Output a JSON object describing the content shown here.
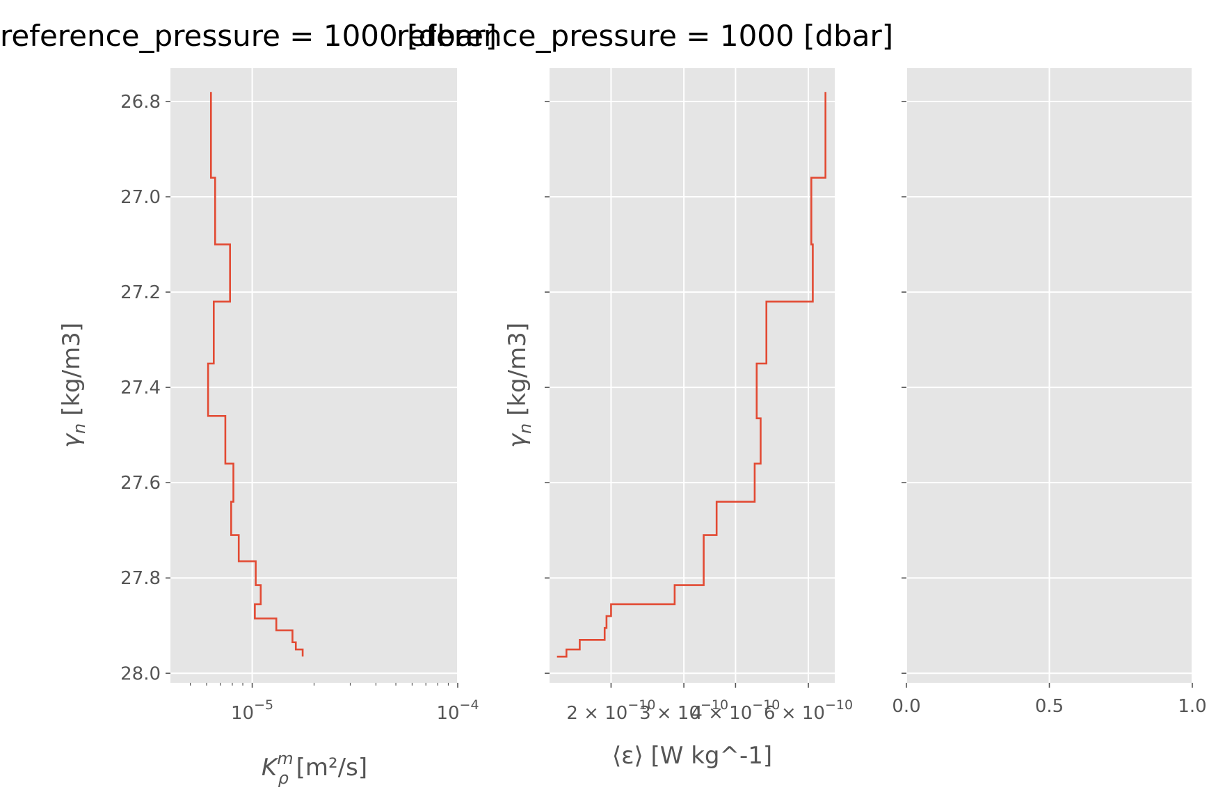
{
  "chart_data": [
    {
      "type": "line",
      "panel": "left",
      "title": "reference_pressure = 1000 [dbar]",
      "xlabel_main": "K",
      "xlabel_sup": "m",
      "xlabel_sub": "ρ",
      "xlabel_unit": " [m²/s]",
      "ylabel_main": "γ",
      "ylabel_sub": "n",
      "ylabel_unit": " [kg/m3]",
      "xscale": "log",
      "xlim": [
        4e-06,
        0.0001
      ],
      "ylim": [
        28.02,
        26.73
      ],
      "x_ticks": [
        {
          "value": 1e-05,
          "base": "10",
          "exp": "−5"
        },
        {
          "value": 0.0001,
          "base": "10",
          "exp": "−4"
        }
      ],
      "y_ticks": [
        {
          "value": 26.8,
          "label": "26.8"
        },
        {
          "value": 27.0,
          "label": "27.0"
        },
        {
          "value": 27.2,
          "label": "27.2"
        },
        {
          "value": 27.4,
          "label": "27.4"
        },
        {
          "value": 27.6,
          "label": "27.6"
        },
        {
          "value": 27.8,
          "label": "27.8"
        },
        {
          "value": 28.0,
          "label": "28.0"
        }
      ],
      "grid": true,
      "series": [
        {
          "color": "#E24A33",
          "x": [
            6.3e-06,
            6.3e-06,
            6.6e-06,
            6.6e-06,
            7.8e-06,
            7.8e-06,
            6.5e-06,
            6.5e-06,
            6.1e-06,
            6.1e-06,
            7.4e-06,
            7.4e-06,
            8.1e-06,
            8.1e-06,
            7.9e-06,
            7.9e-06,
            8.6e-06,
            8.6e-06,
            1.04e-05,
            1.04e-05,
            1.1e-05,
            1.1e-05,
            1.03e-05,
            1.03e-05,
            1.31e-05,
            1.31e-05,
            1.57e-05,
            1.57e-05,
            1.63e-05,
            1.63e-05,
            1.76e-05,
            1.76e-05
          ],
          "y": [
            26.78,
            26.96,
            26.96,
            27.1,
            27.1,
            27.22,
            27.22,
            27.35,
            27.35,
            27.46,
            27.46,
            27.56,
            27.56,
            27.64,
            27.64,
            27.71,
            27.71,
            27.765,
            27.765,
            27.815,
            27.815,
            27.855,
            27.855,
            27.885,
            27.885,
            27.91,
            27.91,
            27.935,
            27.935,
            27.95,
            27.95,
            27.965
          ]
        }
      ]
    },
    {
      "type": "line",
      "panel": "middle",
      "title": "reference_pressure = 1000 [dbar]",
      "xlabel": "⟨ε⟩ [W kg^-1]",
      "ylabel_main": "γ",
      "ylabel_sub": "n",
      "ylabel_unit": " [kg/m3]",
      "xscale": "log",
      "xlim": [
        1.42e-10,
        6.95e-10
      ],
      "ylim": [
        28.02,
        26.73
      ],
      "x_ticks": [
        {
          "value": 2e-10,
          "text": "2 × 10",
          "exp": "−10"
        },
        {
          "value": 3e-10,
          "text": "3 × 10",
          "exp": "−10"
        },
        {
          "value": 4e-10,
          "text": "4 × 10",
          "exp": "−10"
        },
        {
          "value": 6e-10,
          "text": "6 × 10",
          "exp": "−10"
        }
      ],
      "y_ticks": [
        26.8,
        27.0,
        27.2,
        27.4,
        27.6,
        27.8,
        28.0
      ],
      "grid": true,
      "series": [
        {
          "color": "#E24A33",
          "x": [
            6.6e-10,
            6.6e-10,
            6.1e-10,
            6.1e-10,
            6.15e-10,
            6.15e-10,
            4.75e-10,
            4.75e-10,
            4.5e-10,
            4.5e-10,
            4.6e-10,
            4.6e-10,
            4.45e-10,
            4.45e-10,
            3.6e-10,
            3.6e-10,
            3.35e-10,
            3.35e-10,
            2.85e-10,
            2.85e-10,
            2e-10,
            2e-10,
            1.95e-10,
            1.95e-10,
            1.93e-10,
            1.93e-10,
            1.68e-10,
            1.68e-10,
            1.56e-10,
            1.56e-10,
            1.48e-10
          ],
          "y": [
            26.78,
            26.96,
            26.96,
            27.1,
            27.1,
            27.22,
            27.22,
            27.35,
            27.35,
            27.465,
            27.465,
            27.56,
            27.56,
            27.64,
            27.64,
            27.71,
            27.71,
            27.815,
            27.815,
            27.855,
            27.855,
            27.88,
            27.88,
            27.905,
            27.905,
            27.93,
            27.93,
            27.95,
            27.95,
            27.965,
            27.965
          ]
        }
      ]
    },
    {
      "type": "line",
      "panel": "right",
      "xlim": [
        0.0,
        1.0
      ],
      "ylim": [
        28.02,
        26.73
      ],
      "x_ticks": [
        {
          "value": 0.0,
          "label": "0.0"
        },
        {
          "value": 0.5,
          "label": "0.5"
        },
        {
          "value": 1.0,
          "label": "1.0"
        }
      ],
      "y_ticks": [
        26.8,
        27.0,
        27.2,
        27.4,
        27.6,
        27.8,
        28.0
      ],
      "grid": true,
      "series": []
    }
  ],
  "colors": {
    "axes_bg": "#E5E5E5",
    "grid": "#FFFFFF",
    "line": "#E24A33",
    "tick_text": "#555555"
  }
}
